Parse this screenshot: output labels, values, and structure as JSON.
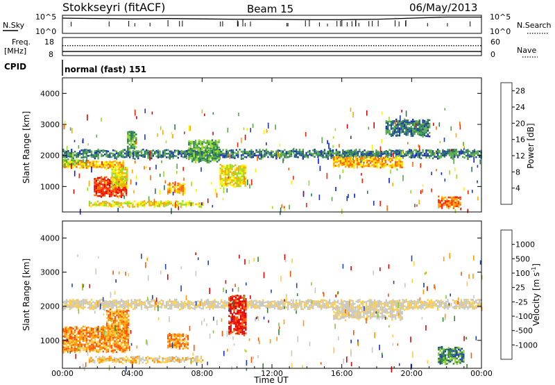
{
  "header": {
    "station": "Stokkseyri (fitACF)",
    "beam": "Beam 15",
    "date": "06/May/2013"
  },
  "noise_panel": {
    "left_label": "N.Sky",
    "right_label": "N.Search",
    "left_ticks": [
      "10^5",
      "10^0"
    ],
    "right_ticks": [
      "10^5",
      "10^0"
    ]
  },
  "freq_panel": {
    "left_label": "Freq.",
    "left_unit": "[MHz]",
    "right_label": "Nave",
    "left_ticks": [
      "18",
      "8"
    ],
    "right_ticks": [
      "60",
      "0"
    ]
  },
  "cpid": {
    "label": "CPID",
    "value": "normal (fast) 151"
  },
  "x_axis": {
    "title": "Time UT",
    "ticks": [
      "00:00",
      "04:00",
      "08:00",
      "12:00",
      "16:00",
      "20:00",
      "00:00"
    ]
  },
  "colors": {
    "power": [
      "#0018ff",
      "#1e3aa8",
      "#2a7a5a",
      "#55aa44",
      "#99dd22",
      "#ffee00",
      "#ffaa00",
      "#ff6600",
      "#ff2200",
      "#dd0000"
    ],
    "velocity": [
      "#e60000",
      "#ff5500",
      "#ff9900",
      "#ffcc44",
      "#c8c8c0",
      "#c8c8c0",
      "#88cc33",
      "#2a8a2a",
      "#2244aa",
      "#1133cc"
    ]
  },
  "chart_data": [
    {
      "type": "line",
      "title": "N.Sky / N.Search",
      "ylim_log": [
        0,
        5
      ],
      "series": [
        {
          "name": "N.Sky",
          "x_hours": [
            0,
            2,
            4,
            6,
            8,
            10,
            12,
            14,
            16,
            18,
            20,
            22,
            24
          ],
          "log_values": [
            4.2,
            4.1,
            4.0,
            4.1,
            4.0,
            3.9,
            3.9,
            3.8,
            3.8,
            3.9,
            4.2,
            4.5,
            4.5
          ]
        }
      ]
    },
    {
      "type": "line",
      "title": "Freq. / Nave",
      "ylim_freq": [
        8,
        18
      ],
      "ylim_nave": [
        0,
        60
      ],
      "series": [
        {
          "name": "Freq.",
          "x_hours": [
            0,
            24
          ],
          "values": [
            10.3,
            10.3
          ]
        },
        {
          "name": "Nave",
          "x_hours": [
            0,
            24
          ],
          "values": [
            33,
            33
          ]
        }
      ]
    },
    {
      "type": "heatmap",
      "ylabel": "Slant Range [km]",
      "yticks": [
        1000,
        2000,
        3000,
        4000
      ],
      "ylim": [
        180,
        4500
      ],
      "xlim_hours": [
        0,
        24
      ],
      "colorbar": {
        "label": "Power [dB]",
        "ticks": [
          "4",
          "8",
          "12",
          "16",
          "20",
          "24",
          "28"
        ],
        "range": [
          0,
          30
        ]
      },
      "bands": [
        {
          "x0": 0.0,
          "x1": 24.0,
          "r0": 1950,
          "r1": 2180,
          "level": 2
        },
        {
          "x0": 0.0,
          "x1": 3.5,
          "r0": 1600,
          "r1": 1820,
          "level": 6
        },
        {
          "x0": 0.0,
          "x1": 1.2,
          "r0": 1700,
          "r1": 1900,
          "level": 4
        },
        {
          "x0": 1.8,
          "x1": 3.7,
          "r0": 700,
          "r1": 1300,
          "level": 8
        },
        {
          "x0": 2.8,
          "x1": 3.7,
          "r0": 1000,
          "r1": 1600,
          "level": 5
        },
        {
          "x0": 3.7,
          "x1": 4.2,
          "r0": 2200,
          "r1": 2800,
          "level": 3
        },
        {
          "x0": 6.0,
          "x1": 7.0,
          "r0": 800,
          "r1": 1100,
          "level": 6
        },
        {
          "x0": 7.2,
          "x1": 9.0,
          "r0": 1800,
          "r1": 2500,
          "level": 3
        },
        {
          "x0": 9.0,
          "x1": 10.5,
          "r0": 1000,
          "r1": 1700,
          "level": 5
        },
        {
          "x0": 15.5,
          "x1": 19.5,
          "r0": 1650,
          "r1": 1950,
          "level": 6
        },
        {
          "x0": 18.5,
          "x1": 21.0,
          "r0": 2650,
          "r1": 3150,
          "level": 2
        },
        {
          "x0": 21.5,
          "x1": 22.8,
          "r0": 350,
          "r1": 700,
          "level": 7
        },
        {
          "x0": 1.5,
          "x1": 8.0,
          "r0": 380,
          "r1": 520,
          "level": 5
        }
      ]
    },
    {
      "type": "heatmap",
      "ylabel": "Slant Range [km]",
      "yticks": [
        1000,
        2000,
        3000,
        4000
      ],
      "ylim": [
        180,
        4500
      ],
      "xlim_hours": [
        0,
        24
      ],
      "colorbar": {
        "label": "Velocity [m s^-1]",
        "ticks": [
          "1000",
          "500",
          "100",
          "25",
          "-25",
          "-100",
          "-500",
          "-1000"
        ],
        "range": [
          -1000,
          1000
        ]
      },
      "bands": [
        {
          "x0": 0.0,
          "x1": 24.0,
          "r0": 1950,
          "r1": 2180,
          "level": 4
        },
        {
          "x0": 0.0,
          "x1": 3.8,
          "r0": 700,
          "r1": 1400,
          "level": 2
        },
        {
          "x0": 2.5,
          "x1": 3.8,
          "r0": 1100,
          "r1": 1900,
          "level": 2
        },
        {
          "x0": 6.0,
          "x1": 7.2,
          "r0": 800,
          "r1": 1200,
          "level": 2
        },
        {
          "x0": 9.5,
          "x1": 10.5,
          "r0": 1200,
          "r1": 2300,
          "level": 0
        },
        {
          "x0": 15.5,
          "x1": 19.5,
          "r0": 1650,
          "r1": 1950,
          "level": 4
        },
        {
          "x0": 21.5,
          "x1": 23.0,
          "r0": 350,
          "r1": 800,
          "level": 7
        },
        {
          "x0": 1.5,
          "x1": 8.0,
          "r0": 380,
          "r1": 520,
          "level": 3
        }
      ]
    }
  ]
}
